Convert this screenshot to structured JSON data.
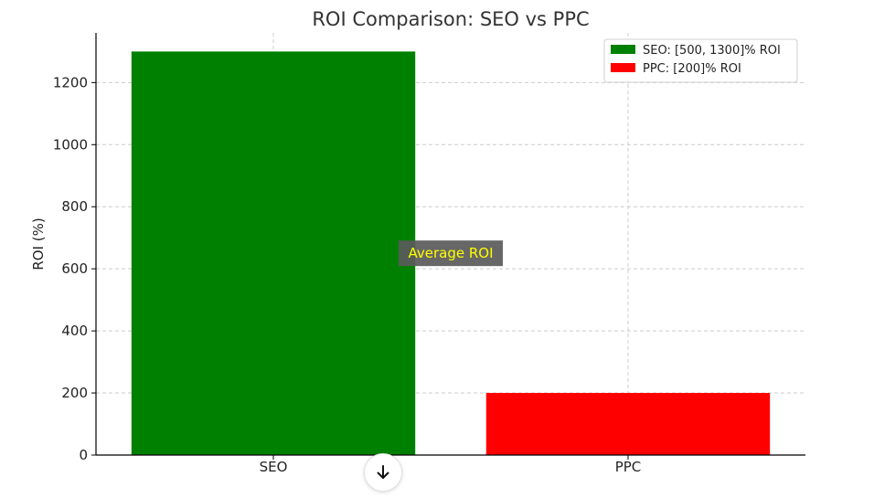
{
  "chart_data": {
    "type": "bar",
    "title": "ROI Comparison: SEO vs PPC",
    "xlabel": "",
    "ylabel": "ROI (%)",
    "categories": [
      "SEO",
      "PPC"
    ],
    "values": [
      1300,
      200
    ],
    "colors": [
      "#008000",
      "#ff0000"
    ],
    "ylim": [
      0,
      1360
    ],
    "yticks": [
      0,
      200,
      400,
      600,
      800,
      1000,
      1200
    ],
    "grid": true,
    "legend": {
      "placement": "top-right",
      "entries": [
        {
          "label": "SEO: [500, 1300]% ROI",
          "color": "#008000"
        },
        {
          "label": "PPC: [200]% ROI",
          "color": "#ff0000"
        }
      ]
    },
    "annotation": {
      "text": "Average ROI",
      "x": 0.5,
      "y": 650,
      "color": "#ffff00",
      "background": "#5a5a5a"
    }
  },
  "ui": {
    "scroll_button": {
      "icon": "arrow-down-icon"
    }
  }
}
